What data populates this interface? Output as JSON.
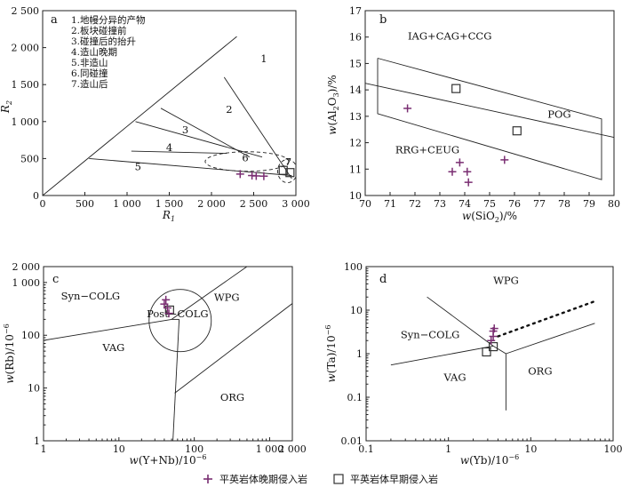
{
  "colors": {
    "late": "#7a2e72",
    "early": "#333333",
    "axis": "#222222"
  },
  "legend": {
    "late_label": "平英岩体晚期侵入岩",
    "early_label": "平英岩体早期侵入岩",
    "late_icon": "plus-marker-icon",
    "early_icon": "square-marker-icon"
  },
  "chart_data": [
    {
      "id": "a",
      "type": "scatter",
      "panel_label": "a",
      "xlabel": "R1",
      "ylabel": "R2",
      "xlim": [
        0,
        3000
      ],
      "ylim": [
        0,
        2500
      ],
      "xticks": [
        "0",
        "500",
        "1 000",
        "1 500",
        "2 000",
        "2 500",
        "3 000"
      ],
      "yticks": [
        "0",
        "500",
        "1 000",
        "1 500",
        "2 000",
        "2 500"
      ],
      "xtick_values": [
        0,
        500,
        1000,
        1500,
        2000,
        2500,
        3000
      ],
      "ytick_values": [
        0,
        500,
        1000,
        1500,
        2000,
        2500
      ],
      "legend_lines": [
        "1.地幔分异的产物",
        "2.板块碰撞前",
        "3.碰撞后的抬升",
        "4.造山晚期",
        "5.非造山",
        "6.同碰撞",
        "7.造山后"
      ],
      "field_labels": [
        {
          "text": "1",
          "x": 2620,
          "y": 1800
        },
        {
          "text": "2",
          "x": 2210,
          "y": 1120
        },
        {
          "text": "3",
          "x": 1690,
          "y": 840
        },
        {
          "text": "4",
          "x": 1500,
          "y": 600
        },
        {
          "text": "5",
          "x": 1130,
          "y": 340
        },
        {
          "text": "6",
          "x": 2400,
          "y": 460
        },
        {
          "text": "7",
          "x": 2910,
          "y": 410
        }
      ],
      "late_points": [
        [
          2340,
          290
        ],
        [
          2480,
          270
        ],
        [
          2530,
          265
        ],
        [
          2620,
          262
        ]
      ],
      "early_points": [
        [
          2850,
          340
        ],
        [
          2930,
          310
        ]
      ],
      "boundaries": [
        [
          [
            0,
            0
          ],
          [
            2300,
            2150
          ]
        ],
        [
          [
            2150,
            1600
          ],
          [
            2950,
            230
          ]
        ],
        [
          [
            550,
            500
          ],
          [
            2950,
            270
          ]
        ],
        [
          [
            1400,
            1180
          ],
          [
            2450,
            520
          ]
        ],
        [
          [
            1100,
            1000
          ],
          [
            2600,
            520
          ]
        ],
        [
          [
            1050,
            600
          ],
          [
            2180,
            570
          ]
        ]
      ]
    },
    {
      "id": "b",
      "type": "scatter",
      "panel_label": "b",
      "xlabel": "w(SiO2)/%",
      "ylabel": "w(Al2O3)/%",
      "xlim": [
        70,
        80
      ],
      "ylim": [
        10,
        17
      ],
      "xticks": [
        "70",
        "71",
        "72",
        "73",
        "74",
        "75",
        "76",
        "77",
        "78",
        "79",
        "80"
      ],
      "yticks": [
        "10",
        "11",
        "12",
        "13",
        "14",
        "15",
        "16",
        "17"
      ],
      "xtick_values": [
        70,
        71,
        72,
        73,
        74,
        75,
        76,
        77,
        78,
        79,
        80
      ],
      "ytick_values": [
        10,
        11,
        12,
        13,
        14,
        15,
        16,
        17
      ],
      "field_labels": [
        {
          "text": "IAG+CAG+CCG",
          "x": 73.4,
          "y": 15.9
        },
        {
          "text": "POG",
          "x": 77.8,
          "y": 12.95
        },
        {
          "text": "RRG+CEUG",
          "x": 72.5,
          "y": 11.6
        }
      ],
      "late_points": [
        [
          71.7,
          13.3
        ],
        [
          73.5,
          10.9
        ],
        [
          73.8,
          11.25
        ],
        [
          74.1,
          10.9
        ],
        [
          74.15,
          10.5
        ],
        [
          75.6,
          11.35
        ]
      ],
      "early_points": [
        [
          73.65,
          14.05
        ],
        [
          76.1,
          12.45
        ]
      ],
      "boundaries": [
        [
          [
            70.5,
            15.2
          ],
          [
            79.5,
            12.9
          ],
          [
            79.5,
            10.6
          ],
          [
            70.5,
            13.1
          ],
          [
            70.5,
            15.2
          ]
        ],
        [
          [
            70,
            14.25
          ],
          [
            80,
            12.2
          ]
        ]
      ]
    },
    {
      "id": "c",
      "type": "scatter",
      "panel_label": "c",
      "xlabel": "w(Y+Nb)/10^-6",
      "ylabel": "w(Rb)/10^-6",
      "xscale": "log",
      "yscale": "log",
      "xlim": [
        1,
        2000
      ],
      "ylim": [
        1,
        2000
      ],
      "xticks": [
        "1",
        "10",
        "100",
        "1 000",
        "2 000"
      ],
      "yticks": [
        "1",
        "10",
        "100",
        "1 000",
        "2 000"
      ],
      "xtick_values": [
        1,
        10,
        100,
        1000,
        2000
      ],
      "ytick_values": [
        1,
        10,
        100,
        1000,
        2000
      ],
      "field_labels": [
        {
          "text": "Syn−COLG",
          "x": 4.2,
          "y": 480
        },
        {
          "text": "WPG",
          "x": 270,
          "y": 450
        },
        {
          "text": "Post−COLG",
          "x": 60,
          "y": 220
        },
        {
          "text": "VAG",
          "x": 8.5,
          "y": 50
        },
        {
          "text": "ORG",
          "x": 320,
          "y": 5.7
        }
      ],
      "late_points": [
        [
          40,
          390
        ],
        [
          42,
          470
        ],
        [
          44,
          330
        ],
        [
          46,
          260
        ]
      ],
      "early_points": [
        [
          47,
          300
        ]
      ],
      "boundaries": [
        [
          [
            1,
            80
          ],
          [
            50,
            200
          ]
        ],
        [
          [
            50,
            200
          ],
          [
            500,
            2000
          ]
        ],
        [
          [
            50,
            200
          ],
          [
            63,
            200
          ]
        ],
        [
          [
            63,
            200
          ],
          [
            52,
            1
          ]
        ],
        [
          [
            55,
            8
          ],
          [
            2000,
            400
          ]
        ]
      ],
      "circle": {
        "cx": 65,
        "cy": 190
      }
    },
    {
      "id": "d",
      "type": "scatter",
      "panel_label": "d",
      "xlabel": "w(Yb)/10^-6",
      "ylabel": "w(Ta)/10^-6",
      "xscale": "log",
      "yscale": "log",
      "xlim": [
        0.1,
        100
      ],
      "ylim": [
        0.01,
        100
      ],
      "xticks": [
        "0.1",
        "1",
        "10",
        "100"
      ],
      "yticks": [
        "0.01",
        "0.1",
        "1",
        "10",
        "100"
      ],
      "xtick_values": [
        0.1,
        1,
        10,
        100
      ],
      "ytick_values": [
        0.01,
        0.1,
        1,
        10,
        100
      ],
      "field_labels": [
        {
          "text": "WPG",
          "x": 5,
          "y": 40
        },
        {
          "text": "Syn−COLG",
          "x": 0.6,
          "y": 2.3
        },
        {
          "text": "VAG",
          "x": 1.2,
          "y": 0.24
        },
        {
          "text": "ORG",
          "x": 13,
          "y": 0.33
        }
      ],
      "late_points": [
        [
          3.3,
          2.0
        ],
        [
          3.5,
          2.5
        ],
        [
          3.5,
          3.3
        ],
        [
          3.6,
          3.8
        ]
      ],
      "early_points": [
        [
          2.9,
          1.1
        ],
        [
          3.5,
          1.45
        ]
      ],
      "boundaries": [
        [
          [
            0.55,
            20
          ],
          [
            3.5,
            1.5
          ]
        ],
        [
          [
            3.5,
            1.5
          ],
          [
            5,
            1.0
          ]
        ],
        [
          [
            5,
            1.0
          ],
          [
            60,
            5
          ]
        ],
        [
          [
            5,
            1.0
          ],
          [
            5,
            0.05
          ]
        ],
        [
          [
            0.2,
            0.55
          ],
          [
            3.5,
            1.5
          ]
        ]
      ],
      "dotted": [
        [
          4,
          2.5
        ],
        [
          60,
          16
        ]
      ]
    }
  ]
}
